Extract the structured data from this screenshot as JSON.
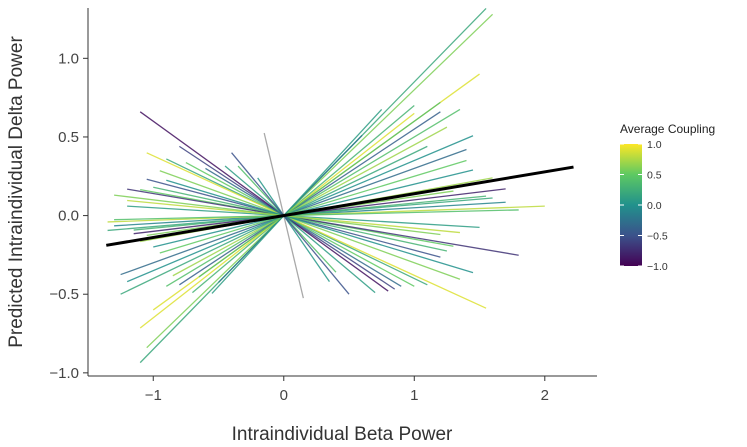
{
  "chart_data": {
    "type": "line",
    "title": "",
    "xlabel": "Intraindividual Beta Power",
    "ylabel": "Predicted Intraindividual Delta Power",
    "xlim": [
      -1.5,
      2.4
    ],
    "ylim": [
      -1.02,
      1.32
    ],
    "x_ticks": [
      -1,
      0,
      1,
      2
    ],
    "y_ticks": [
      -1.0,
      -0.5,
      0.0,
      0.5,
      1.0
    ],
    "x_tick_labels": [
      "−1",
      "0",
      "1",
      "2"
    ],
    "y_tick_labels": [
      "−1.0",
      "−0.5",
      "0.0",
      "0.5",
      "1.0"
    ],
    "grid": false,
    "legend": {
      "title": "Average Coupling",
      "placement": "right",
      "ticks": [
        1.0,
        0.5,
        0.0,
        -0.5,
        -1.0
      ],
      "tick_labels": [
        "1.0",
        "0.5",
        "0.0",
        "−0.5",
        "−1.0"
      ],
      "colors": [
        "#fde725",
        "#5ec962",
        "#21918c",
        "#3b528b",
        "#440154"
      ]
    },
    "overall_fit": {
      "x_range": [
        -1.36,
        2.22
      ],
      "slope": 0.139,
      "intercept": 0.0,
      "color": "#000000"
    },
    "series": [
      {
        "x_range": [
          -1.05,
          1.6
        ],
        "slope": 0.8,
        "coupling": 0.6
      },
      {
        "x_range": [
          -1.1,
          1.55
        ],
        "slope": 0.85,
        "coupling": 0.2
      },
      {
        "x_range": [
          -1.0,
          1.5
        ],
        "slope": 0.6,
        "coupling": 0.9
      },
      {
        "x_range": [
          -0.9,
          1.35
        ],
        "slope": 0.5,
        "coupling": 0.4
      },
      {
        "x_range": [
          -1.2,
          1.45
        ],
        "slope": 0.35,
        "coupling": 0.0
      },
      {
        "x_range": [
          -1.25,
          1.4
        ],
        "slope": 0.3,
        "coupling": -0.3
      },
      {
        "x_range": [
          -1.1,
          1.6
        ],
        "slope": 0.15,
        "coupling": 0.7
      },
      {
        "x_range": [
          -1.15,
          1.55
        ],
        "slope": 0.08,
        "coupling": 0.3
      },
      {
        "x_range": [
          -1.3,
          1.7
        ],
        "slope": 0.05,
        "coupling": -0.1
      },
      {
        "x_range": [
          -1.35,
          2.0
        ],
        "slope": 0.03,
        "coupling": 0.8
      },
      {
        "x_range": [
          -1.3,
          1.8
        ],
        "slope": 0.02,
        "coupling": 0.4
      },
      {
        "x_range": [
          -1.2,
          1.5
        ],
        "slope": -0.05,
        "coupling": 0.1
      },
      {
        "x_range": [
          -1.1,
          1.3
        ],
        "slope": -0.15,
        "coupling": 0.5
      },
      {
        "x_range": [
          -1.05,
          1.2
        ],
        "slope": -0.22,
        "coupling": -0.5
      },
      {
        "x_range": [
          -0.95,
          1.35
        ],
        "slope": -0.3,
        "coupling": 0.6
      },
      {
        "x_range": [
          -0.9,
          1.1
        ],
        "slope": -0.4,
        "coupling": 0.2
      },
      {
        "x_range": [
          -0.8,
          0.85
        ],
        "slope": -0.55,
        "coupling": -0.6
      },
      {
        "x_range": [
          -1.05,
          1.55
        ],
        "slope": -0.38,
        "coupling": 0.9
      },
      {
        "x_range": [
          -1.2,
          1.8
        ],
        "slope": -0.14,
        "coupling": -0.7
      },
      {
        "x_range": [
          -1.1,
          0.8
        ],
        "slope": -0.6,
        "coupling": -0.9
      },
      {
        "x_range": [
          -0.15,
          0.15
        ],
        "slope": -3.5,
        "coupling": 0.0
      },
      {
        "x_range": [
          -0.2,
          0.35
        ],
        "slope": -1.2,
        "coupling": 0.05
      },
      {
        "x_range": [
          -0.35,
          0.4
        ],
        "slope": -0.9,
        "coupling": 0.4
      },
      {
        "x_range": [
          -0.45,
          0.7
        ],
        "slope": -0.7,
        "coupling": 0.1
      },
      {
        "x_range": [
          -0.5,
          0.6
        ],
        "slope": 0.85,
        "coupling": -0.2
      },
      {
        "x_range": [
          -0.7,
          1.0
        ],
        "slope": 0.7,
        "coupling": 0.3
      },
      {
        "x_range": [
          -0.8,
          1.2
        ],
        "slope": 0.55,
        "coupling": -0.4
      },
      {
        "x_range": [
          -0.85,
          1.25
        ],
        "slope": 0.45,
        "coupling": 0.7
      },
      {
        "x_range": [
          -0.95,
          1.4
        ],
        "slope": 0.25,
        "coupling": 0.5
      },
      {
        "x_range": [
          -1.0,
          1.45
        ],
        "slope": 0.2,
        "coupling": 0.0
      },
      {
        "x_range": [
          -1.05,
          1.3
        ],
        "slope": 0.12,
        "coupling": 0.6
      },
      {
        "x_range": [
          -1.15,
          1.7
        ],
        "slope": 0.1,
        "coupling": -0.8
      },
      {
        "x_range": [
          -1.2,
          1.35
        ],
        "slope": -0.08,
        "coupling": 0.8
      },
      {
        "x_range": [
          -1.0,
          1.25
        ],
        "slope": -0.18,
        "coupling": 0.3
      },
      {
        "x_range": [
          -0.9,
          1.45
        ],
        "slope": -0.25,
        "coupling": 0.0
      },
      {
        "x_range": [
          -0.75,
          1.0
        ],
        "slope": -0.45,
        "coupling": 0.5
      },
      {
        "x_range": [
          -0.6,
          0.9
        ],
        "slope": -0.5,
        "coupling": -0.3
      },
      {
        "x_range": [
          -1.25,
          1.1
        ],
        "slope": 0.4,
        "coupling": 0.2
      },
      {
        "x_range": [
          -1.1,
          1.0
        ],
        "slope": 0.65,
        "coupling": 0.9
      },
      {
        "x_range": [
          -0.65,
          1.2
        ],
        "slope": 0.6,
        "coupling": 0.4
      },
      {
        "x_range": [
          -0.55,
          0.75
        ],
        "slope": 0.9,
        "coupling": 0.1
      },
      {
        "x_range": [
          -0.4,
          0.5
        ],
        "slope": -1.0,
        "coupling": -0.5
      },
      {
        "x_range": [
          -1.3,
          1.2
        ],
        "slope": -0.1,
        "coupling": 0.6
      },
      {
        "x_range": [
          -1.35,
          1.6
        ],
        "slope": 0.07,
        "coupling": 0.2
      }
    ]
  }
}
